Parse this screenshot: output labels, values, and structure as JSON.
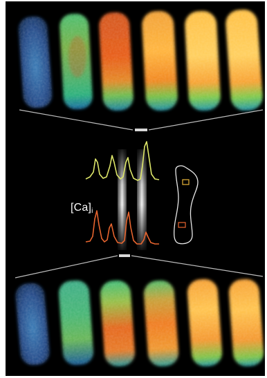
{
  "figure": {
    "label_main": "[Ca]",
    "label_sub": "i"
  },
  "colors": {
    "background": "#000000",
    "trace_top": "#dfe86a",
    "trace_bottom": "#e8652f",
    "outline": "#e9e9e9",
    "connector": "#d0d0d0"
  },
  "icons": [
    "cell-outline-icon"
  ]
}
